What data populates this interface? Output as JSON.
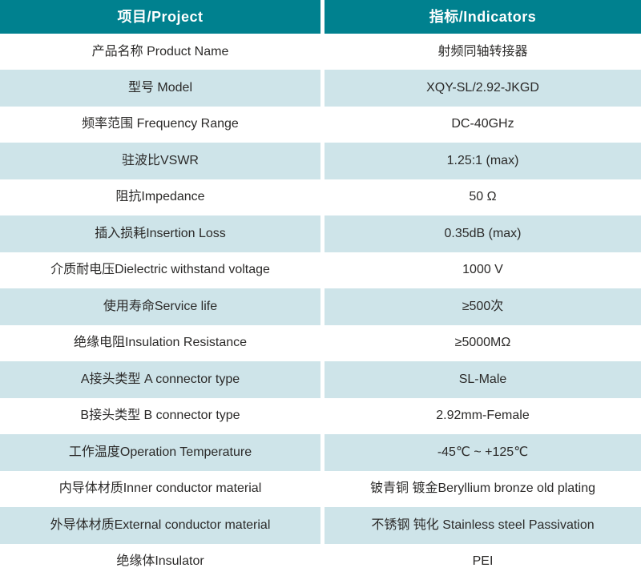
{
  "colors": {
    "header_bg": "#00818F",
    "row_alt_bg": "#CEE4E9",
    "header_text": "#FFFFFF",
    "body_text": "#2B2A29",
    "page_bg": "#FFFFFF"
  },
  "table": {
    "header": {
      "project": "项目/Project",
      "indicators": "指标/Indicators"
    },
    "rows": [
      {
        "label": "产品名称 Product Name",
        "value": "射频同轴转接器"
      },
      {
        "label": "型号 Model",
        "value": "XQY-SL/2.92-JKGD"
      },
      {
        "label": "频率范围 Frequency Range",
        "value": "DC-40GHz"
      },
      {
        "label": "驻波比VSWR",
        "value": "1.25:1 (max)"
      },
      {
        "label": "阻抗Impedance",
        "value": "50 Ω"
      },
      {
        "label": "插入损耗Insertion Loss",
        "value": "0.35dB (max)"
      },
      {
        "label": "介质耐电压Dielectric withstand voltage",
        "value": "1000 V"
      },
      {
        "label": "使用寿命Service life",
        "value": "≥500次"
      },
      {
        "label": "绝缘电阻Insulation Resistance",
        "value": "≥5000MΩ"
      },
      {
        "label": "A接头类型 A connector type",
        "value": "SL-Male"
      },
      {
        "label": "B接头类型 B connector type",
        "value": "2.92mm-Female"
      },
      {
        "label": "工作温度Operation Temperature",
        "value": "-45℃ ~ +125℃"
      },
      {
        "label": "内导体材质Inner conductor material",
        "value": "铍青铜 镀金Beryllium bronze  old plating"
      },
      {
        "label": "外导体材质External conductor material",
        "value": "不锈钢 钝化 Stainless steel  Passivation"
      },
      {
        "label": "绝缘体Insulator",
        "value": "PEI"
      }
    ]
  }
}
